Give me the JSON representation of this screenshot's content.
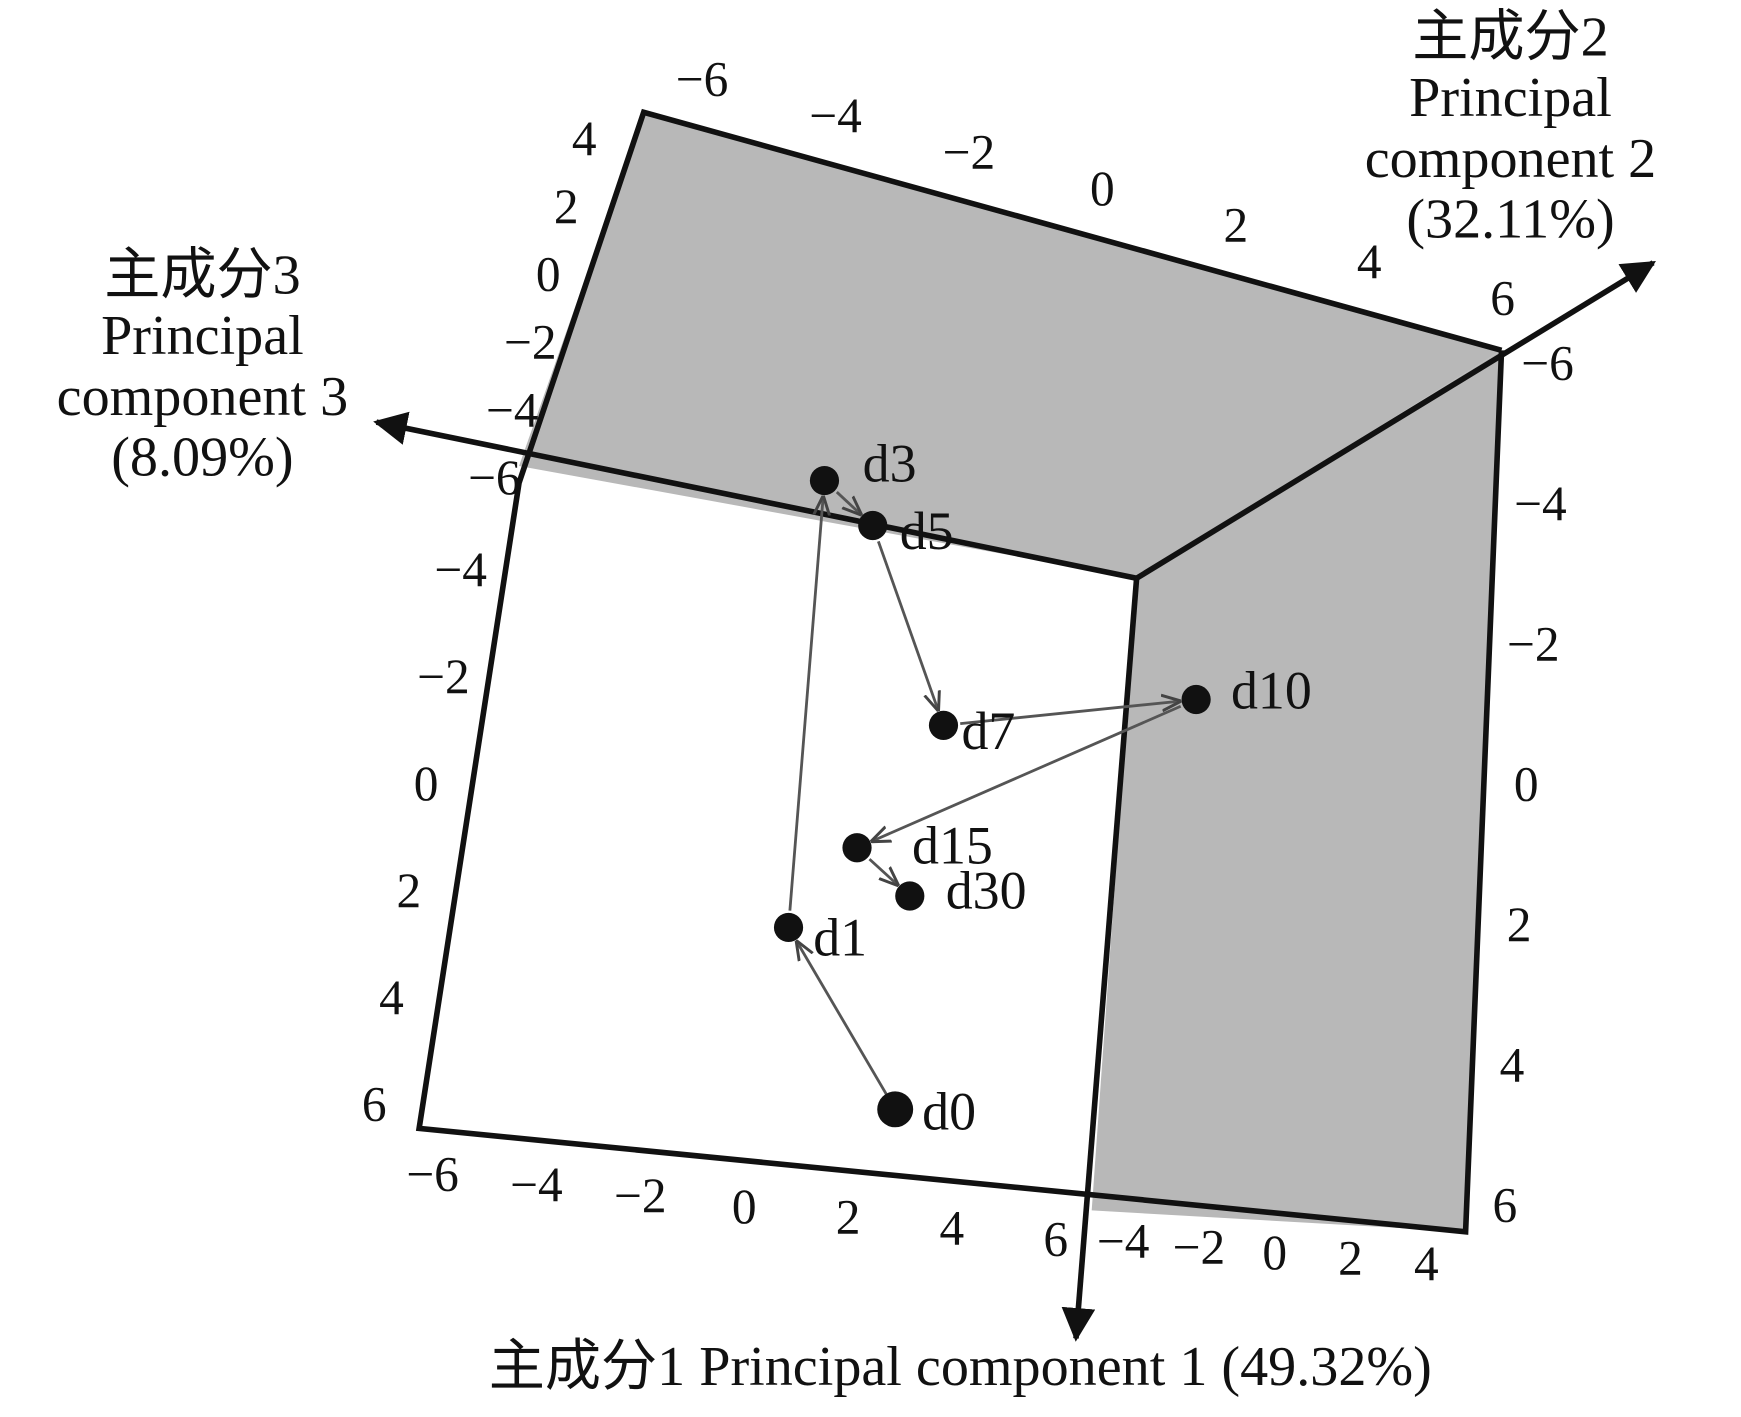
{
  "chart_data": {
    "type": "scatter3d",
    "axis_titles": {
      "pc1": "主成分1  Principal component 1 (49.32%)",
      "pc2": [
        "主成分2",
        "Principal",
        "component 2",
        "(32.11%)"
      ],
      "pc3": [
        "主成分3",
        "Principal",
        "component 3",
        "(8.09%)"
      ]
    },
    "tick_groups": [
      [
        {
          "value": -6,
          "label": "−6"
        },
        {
          "value": -4,
          "label": "−4"
        },
        {
          "value": -2,
          "label": "−2"
        },
        0,
        2,
        4,
        6
      ],
      [
        4,
        2,
        0,
        {
          "value": -2,
          "label": "−2"
        },
        {
          "value": -4,
          "label": "−4"
        },
        {
          "value": -6,
          "label": "−6"
        }
      ],
      [
        {
          "value": -4,
          "label": "−4"
        },
        {
          "value": -2,
          "label": "−2"
        },
        0,
        2,
        4,
        6
      ],
      [
        {
          "value": -6,
          "label": "−6"
        },
        {
          "value": -4,
          "label": "−4"
        },
        {
          "value": -2,
          "label": "−2"
        },
        0,
        2,
        4,
        6
      ],
      [
        {
          "value": -4,
          "label": "−4"
        },
        {
          "value": -2,
          "label": "−2"
        },
        0,
        2,
        4
      ],
      [
        {
          "value": -6,
          "label": "−6"
        },
        {
          "value": -4,
          "label": "−4"
        },
        {
          "value": -2,
          "label": "−2"
        },
        0,
        2,
        4,
        6
      ]
    ],
    "points": [
      "d0",
      "d1",
      "d3",
      "d5",
      "d7",
      "d10",
      "d15",
      "d30"
    ]
  }
}
